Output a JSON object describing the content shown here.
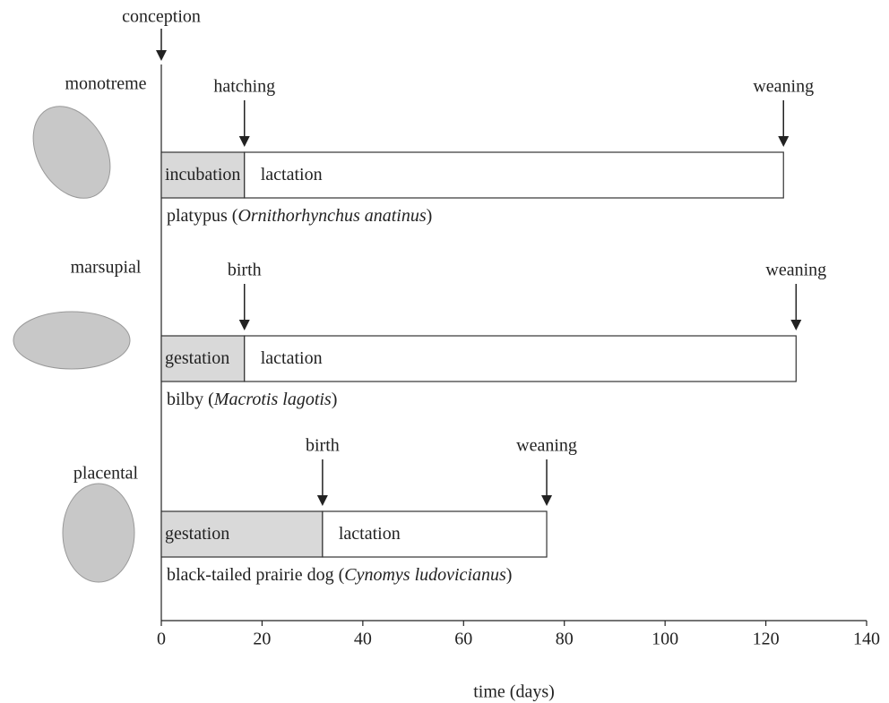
{
  "chart_data": {
    "type": "timeline",
    "start_label": "conception",
    "x_label": "time (days)",
    "xlim": [
      0,
      140
    ],
    "xticks": [
      0,
      20,
      40,
      60,
      80,
      100,
      120,
      140
    ],
    "rows": [
      {
        "group": "monotreme",
        "name_before": "platypus (",
        "name_latin": "Ornithorhynchus anatinus",
        "name_after": ")",
        "phases": [
          {
            "name": "incubation",
            "value": 16.5,
            "color": "#d9d9d9"
          },
          {
            "name": "lactation",
            "value": 107,
            "color": "#ffffff"
          }
        ],
        "events": [
          "hatching",
          "weaning"
        ]
      },
      {
        "group": "marsupial",
        "name_before": "bilby (",
        "name_latin": "Macrotis lagotis",
        "name_after": ")",
        "phases": [
          {
            "name": "gestation",
            "value": 16.5,
            "color": "#d9d9d9"
          },
          {
            "name": "lactation",
            "value": 109.5,
            "color": "#ffffff"
          }
        ],
        "events": [
          "birth",
          "weaning"
        ]
      },
      {
        "group": "placental",
        "name_before": "black-tailed prairie dog (",
        "name_latin": "Cynomys ludovicianus",
        "name_after": ")",
        "phases": [
          {
            "name": "gestation",
            "value": 32,
            "color": "#d9d9d9"
          },
          {
            "name": "lactation",
            "value": 44.5,
            "color": "#ffffff"
          }
        ],
        "events": [
          "birth",
          "weaning"
        ]
      }
    ]
  }
}
